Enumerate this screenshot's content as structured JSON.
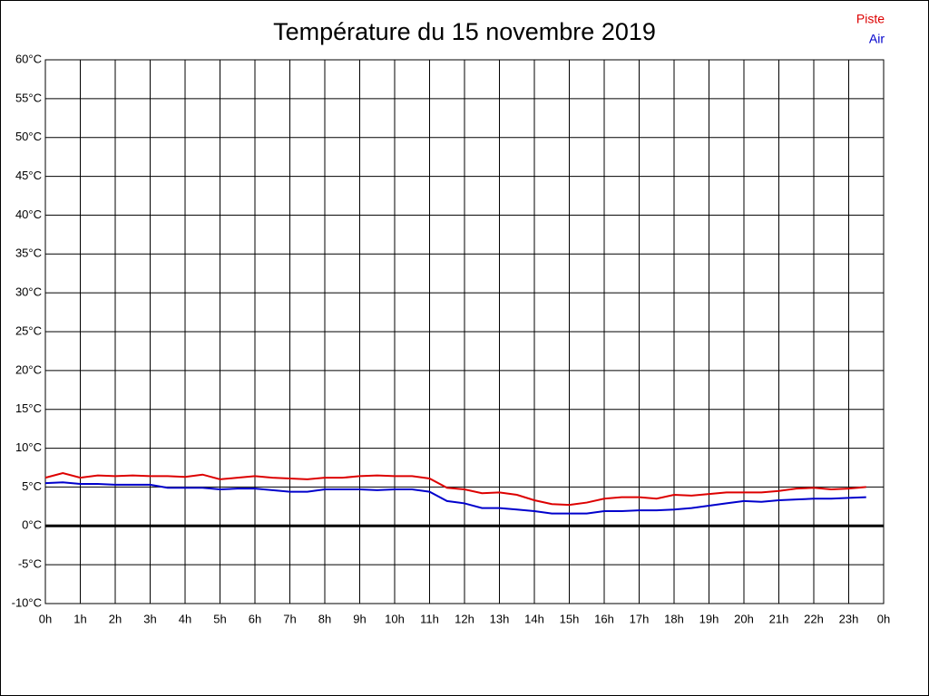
{
  "chart_data": {
    "type": "line",
    "title": "Température du 15 novembre 2019",
    "x": [
      0,
      0.5,
      1,
      1.5,
      2,
      2.5,
      3,
      3.5,
      4,
      4.5,
      5,
      5.5,
      6,
      6.5,
      7,
      7.5,
      8,
      8.5,
      9,
      9.5,
      10,
      10.5,
      11,
      11.5,
      12,
      12.5,
      13,
      13.5,
      14,
      14.5,
      15,
      15.5,
      16,
      16.5,
      17,
      17.5,
      18,
      18.5,
      19,
      19.5,
      20,
      20.5,
      21,
      21.5,
      22,
      22.5,
      23,
      23.5
    ],
    "series": [
      {
        "name": "Piste",
        "color": "#dd0000",
        "values": [
          6.2,
          6.8,
          6.2,
          6.5,
          6.4,
          6.5,
          6.4,
          6.4,
          6.3,
          6.6,
          6.0,
          6.2,
          6.4,
          6.2,
          6.1,
          6.0,
          6.2,
          6.2,
          6.4,
          6.5,
          6.4,
          6.4,
          6.1,
          4.9,
          4.7,
          4.2,
          4.3,
          4.0,
          3.3,
          2.8,
          2.7,
          3.0,
          3.5,
          3.7,
          3.7,
          3.5,
          4.0,
          3.9,
          4.1,
          4.3,
          4.3,
          4.3,
          4.5,
          4.8,
          4.9,
          4.7,
          4.8,
          5.0
        ]
      },
      {
        "name": "Air",
        "color": "#0000cc",
        "values": [
          5.5,
          5.6,
          5.4,
          5.4,
          5.3,
          5.3,
          5.3,
          4.9,
          4.9,
          4.9,
          4.7,
          4.8,
          4.8,
          4.6,
          4.4,
          4.4,
          4.7,
          4.7,
          4.7,
          4.6,
          4.7,
          4.7,
          4.4,
          3.2,
          2.9,
          2.3,
          2.3,
          2.1,
          1.9,
          1.6,
          1.6,
          1.6,
          1.9,
          1.9,
          2.0,
          2.0,
          2.1,
          2.3,
          2.6,
          2.9,
          3.2,
          3.1,
          3.3,
          3.4,
          3.5,
          3.5,
          3.6,
          3.7
        ]
      }
    ],
    "xlim": [
      0,
      24
    ],
    "xticks": [
      {
        "value": 0,
        "label": "0h"
      },
      {
        "value": 1,
        "label": "1h"
      },
      {
        "value": 2,
        "label": "2h"
      },
      {
        "value": 3,
        "label": "3h"
      },
      {
        "value": 4,
        "label": "4h"
      },
      {
        "value": 5,
        "label": "5h"
      },
      {
        "value": 6,
        "label": "6h"
      },
      {
        "value": 7,
        "label": "7h"
      },
      {
        "value": 8,
        "label": "8h"
      },
      {
        "value": 9,
        "label": "9h"
      },
      {
        "value": 10,
        "label": "10h"
      },
      {
        "value": 11,
        "label": "11h"
      },
      {
        "value": 12,
        "label": "12h"
      },
      {
        "value": 13,
        "label": "13h"
      },
      {
        "value": 14,
        "label": "14h"
      },
      {
        "value": 15,
        "label": "15h"
      },
      {
        "value": 16,
        "label": "16h"
      },
      {
        "value": 17,
        "label": "17h"
      },
      {
        "value": 18,
        "label": "18h"
      },
      {
        "value": 19,
        "label": "19h"
      },
      {
        "value": 20,
        "label": "20h"
      },
      {
        "value": 21,
        "label": "21h"
      },
      {
        "value": 22,
        "label": "22h"
      },
      {
        "value": 23,
        "label": "23h"
      },
      {
        "value": 24,
        "label": "0h"
      }
    ],
    "ylim": [
      -10,
      60
    ],
    "yticks": [
      {
        "value": -10,
        "label": "-10°C"
      },
      {
        "value": -5,
        "label": "-5°C"
      },
      {
        "value": 0,
        "label": "0°C"
      },
      {
        "value": 5,
        "label": "5°C"
      },
      {
        "value": 10,
        "label": "10°C"
      },
      {
        "value": 15,
        "label": "15°C"
      },
      {
        "value": 20,
        "label": "20°C"
      },
      {
        "value": 25,
        "label": "25°C"
      },
      {
        "value": 30,
        "label": "30°C"
      },
      {
        "value": 35,
        "label": "35°C"
      },
      {
        "value": 40,
        "label": "40°C"
      },
      {
        "value": 45,
        "label": "45°C"
      },
      {
        "value": 50,
        "label": "50°C"
      },
      {
        "value": 55,
        "label": "55°C"
      },
      {
        "value": 60,
        "label": "60°C"
      }
    ],
    "grid": true,
    "legend": "top-right"
  }
}
